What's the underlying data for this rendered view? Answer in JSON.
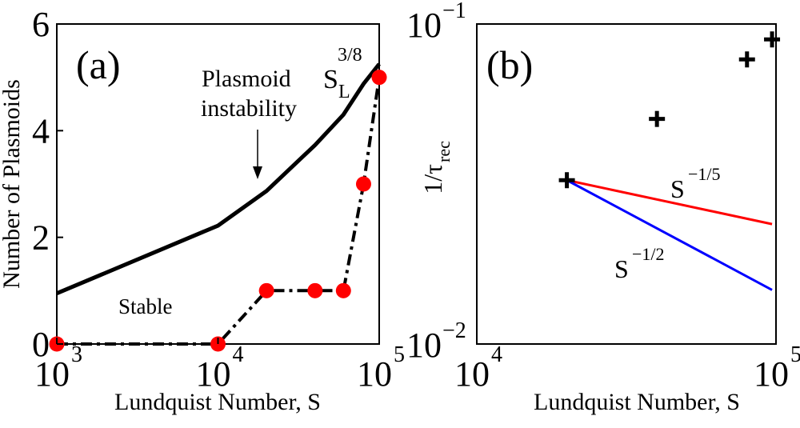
{
  "chart_data": [
    {
      "panel_label": "(a)",
      "type": "line",
      "x_scale": "log",
      "xlabel": "Lundquist Number, S",
      "ylabel": "Number of Plasmoids",
      "xlim": [
        1000,
        100000
      ],
      "ylim": [
        0,
        6
      ],
      "x_ticks": [
        {
          "base": "10",
          "exp": "3",
          "value": 1000
        },
        {
          "base": "10",
          "exp": "4",
          "value": 10000
        },
        {
          "base": "10",
          "exp": "5",
          "value": 100000
        }
      ],
      "y_ticks": [
        {
          "label": "0",
          "value": 0
        },
        {
          "label": "2",
          "value": 2
        },
        {
          "label": "4",
          "value": 4
        },
        {
          "label": "6",
          "value": 6
        }
      ],
      "series": [
        {
          "style": "solid",
          "color": "#000000",
          "points": [
            [
              1000,
              0.95
            ],
            [
              10000,
              2.22
            ],
            [
              20000,
              2.87
            ],
            [
              40000,
              3.73
            ],
            [
              60000,
              4.3
            ],
            [
              80000,
              4.88
            ],
            [
              100000,
              5.25
            ]
          ]
        },
        {
          "style": "dash-dot",
          "color": "#000000",
          "marker": "circle",
          "marker_color": "#ff0000",
          "points": [
            [
              1000,
              0
            ],
            [
              10000,
              0
            ],
            [
              20000,
              1
            ],
            [
              40000,
              1
            ],
            [
              60000,
              1
            ],
            [
              80000,
              3
            ],
            [
              100000,
              5
            ]
          ]
        }
      ],
      "annotations": {
        "stable": "Stable",
        "plasmoid_line1": "Plasmoid",
        "plasmoid_line2": "instability",
        "scaling_base": "S",
        "scaling_sub": "L",
        "scaling_sup": "3/8"
      }
    },
    {
      "panel_label": "(b)",
      "type": "scatter",
      "x_scale": "log",
      "y_scale": "log",
      "xlabel": "Lundquist Number, S",
      "ylabel_main": "1/τ",
      "ylabel_sub": "rec",
      "xlim": [
        10000,
        100000
      ],
      "ylim": [
        0.01,
        0.1
      ],
      "x_ticks": [
        {
          "base": "10",
          "exp": "4",
          "value": 10000
        },
        {
          "base": "10",
          "exp": "5",
          "value": 100000
        }
      ],
      "y_ticks": [
        {
          "base": "10",
          "exp": "−2",
          "value": 0.01
        },
        {
          "base": "10",
          "exp": "−1",
          "value": 0.1
        }
      ],
      "points": [
        [
          20000,
          0.0325
        ],
        [
          40000,
          0.0505
        ],
        [
          80000,
          0.0775
        ],
        [
          97000,
          0.0895
        ]
      ],
      "lines": [
        {
          "label_base": "S",
          "label_sup": "−1/5",
          "color": "#ff0000",
          "exponent": -0.2,
          "from": [
            20000,
            0.0325
          ],
          "to_x": 97000
        },
        {
          "label_base": "S",
          "label_sup": "−1/2",
          "color": "#0000ff",
          "exponent": -0.5,
          "from": [
            20000,
            0.0325
          ],
          "to_x": 97000
        }
      ]
    }
  ]
}
